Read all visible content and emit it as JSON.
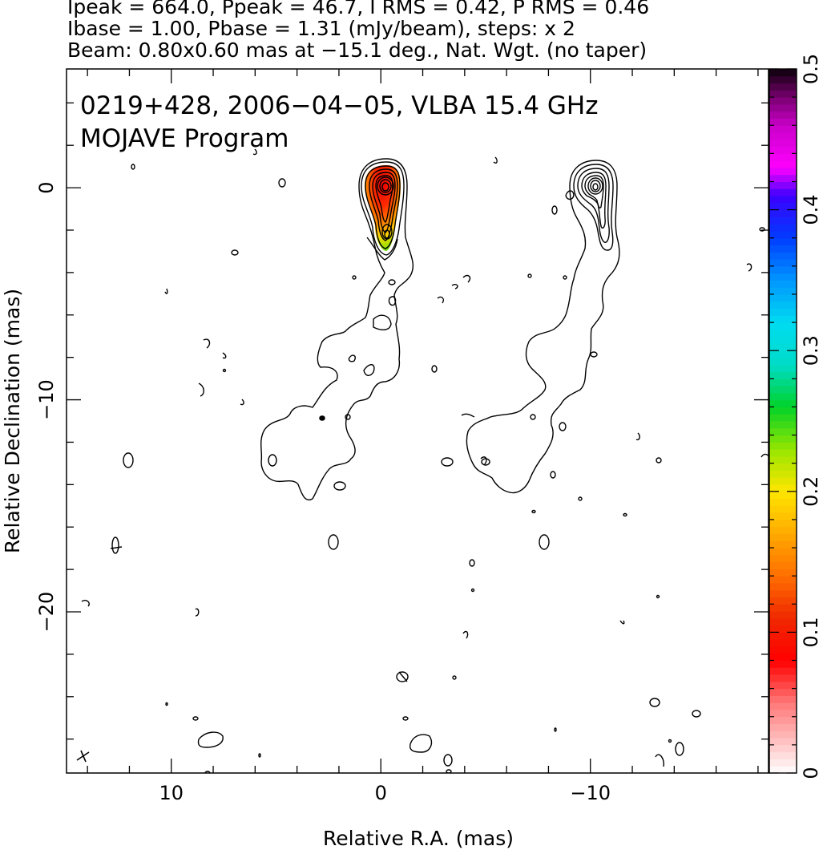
{
  "header": {
    "line1": "Ipeak = 664.0, Ppeak = 46.7, I RMS = 0.42, P RMS = 0.46",
    "line2": "Ibase = 1.00, Pbase = 1.31 (mJy/beam), steps: x 2",
    "line3": "Beam: 0.80x0.60 mas at −15.1 deg., Nat. Wgt. (no taper)"
  },
  "chart_data": {
    "type": "contour",
    "title": "0219+428, 2006−04−05, VLBA 15.4 GHz",
    "subtitle": "MOJAVE Program",
    "xlabel": "Relative R.A. (mas)",
    "ylabel": "Relative Declination (mas)",
    "xlim": [
      15.0,
      -18.5
    ],
    "ylim": [
      -27.6,
      5.6
    ],
    "x_ticks": [
      10,
      0,
      -10
    ],
    "x_tick_labels": [
      "10",
      "0",
      "−10"
    ],
    "y_ticks": [
      0,
      -10,
      -20
    ],
    "y_tick_labels": [
      "0",
      "−10",
      "−20"
    ],
    "colorbar": {
      "min": 0,
      "max": 0.5,
      "ticks": [
        0,
        0.1,
        0.2,
        0.3,
        0.4,
        0.5
      ],
      "tick_labels": [
        "0",
        "0.1",
        "0.2",
        "0.3",
        "0.4",
        "0.5"
      ]
    },
    "peak_offset_ra_mas": -10.0,
    "beam": {
      "major_mas": 0.8,
      "minor_mas": 0.6,
      "pa_deg": -15.1
    },
    "colors": {
      "contour": "#000000",
      "background": "#ffffff"
    }
  }
}
